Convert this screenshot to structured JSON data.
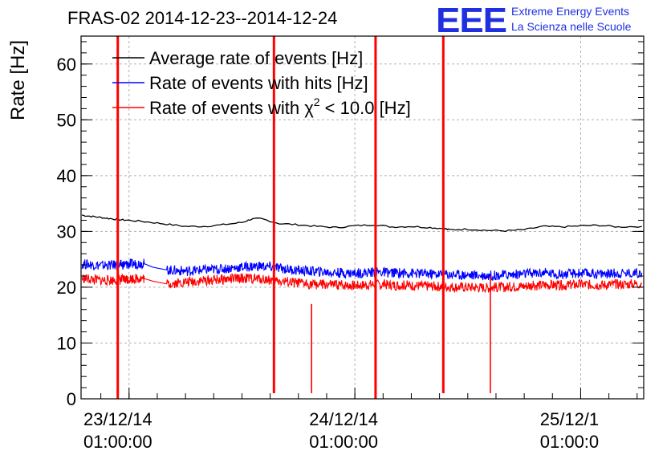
{
  "chart_data": {
    "type": "line",
    "title": "FRAS-02 2014-12-23--2014-12-24",
    "xlabel": "",
    "ylabel": "Rate [Hz]",
    "ylim": [
      0,
      65
    ],
    "xlim_hours": [
      -5.1,
      54.7
    ],
    "grid": true,
    "legend": "top-left",
    "yticks": [
      "0",
      "10",
      "20",
      "30",
      "40",
      "50",
      "60"
    ],
    "xticks": [
      {
        "hour": 0,
        "date": "23/12/14",
        "time": "01:00:00"
      },
      {
        "hour": 24,
        "date": "24/12/14",
        "time": "01:00:00"
      },
      {
        "hour": 48,
        "date": "25/12/1",
        "time": "01:00:0"
      }
    ],
    "series": [
      {
        "name": "Average rate of events [Hz]",
        "legend_prefix": "Average rate of events [Hz]",
        "legend_sup": "",
        "legend_suffix": "",
        "color": "#000000",
        "x": [
          -5.0,
          -4.0,
          -3.0,
          -2.0,
          -1.0,
          0.0,
          2.0,
          4.0,
          6.0,
          8.0,
          10.0,
          12.0,
          13.0,
          14.0,
          16.0,
          18.0,
          20.0,
          22.0,
          24.0,
          26.0,
          28.0,
          30.0,
          32.0,
          33.5,
          34.0,
          36.0,
          38.0,
          40.0,
          42.0,
          44.0,
          46.0,
          48.0,
          50.0,
          52.0,
          54.5
        ],
        "y": [
          32.9,
          32.7,
          32.5,
          32.3,
          32.1,
          32.0,
          31.7,
          31.3,
          30.9,
          30.9,
          31.2,
          31.6,
          32.2,
          32.3,
          31.4,
          31.2,
          30.9,
          30.7,
          31.0,
          31.2,
          30.8,
          30.9,
          30.7,
          30.5,
          30.3,
          30.4,
          30.2,
          30.1,
          30.3,
          30.9,
          30.8,
          31.0,
          31.1,
          30.8,
          30.9
        ]
      },
      {
        "name": "Rate of events with hits [Hz]",
        "legend_prefix": "Rate of events with hits [Hz]",
        "legend_sup": "",
        "legend_suffix": "",
        "color": "#0000ff",
        "x": [
          -5.0,
          -3.0,
          -1.0,
          0.0,
          1.5,
          2.5,
          4.0,
          6.0,
          8.0,
          10.0,
          12.0,
          14.0,
          16.0,
          18.0,
          20.0,
          22.0,
          24.0,
          26.0,
          28.0,
          30.0,
          32.0,
          34.0,
          36.0,
          38.0,
          40.0,
          42.0,
          44.0,
          46.0,
          48.0,
          50.0,
          52.0,
          54.5
        ],
        "y": [
          24.2,
          23.9,
          24.0,
          24.1,
          24.3,
          23.6,
          23.1,
          22.9,
          23.1,
          23.3,
          23.6,
          23.8,
          23.4,
          23.0,
          22.8,
          22.6,
          22.5,
          22.7,
          22.6,
          22.5,
          22.4,
          22.3,
          22.2,
          22.1,
          22.2,
          22.4,
          22.6,
          22.3,
          22.5,
          22.4,
          22.5,
          22.6
        ]
      },
      {
        "name": "Rate of events with χ2 < 10.0 [Hz]",
        "legend_prefix": "Rate of events with χ",
        "legend_sup": "2",
        "legend_suffix": " < 10.0 [Hz]",
        "color": "#ff0000",
        "x": [
          -5.0,
          -3.0,
          -1.0,
          0.0,
          1.5,
          2.5,
          4.0,
          6.0,
          8.0,
          10.0,
          12.0,
          14.0,
          16.0,
          18.0,
          20.0,
          22.0,
          24.0,
          26.0,
          28.0,
          30.0,
          32.0,
          34.0,
          36.0,
          38.0,
          40.0,
          42.0,
          44.0,
          46.0,
          48.0,
          50.0,
          52.0,
          54.5
        ],
        "y": [
          21.6,
          21.2,
          21.3,
          21.5,
          21.6,
          21.1,
          20.6,
          20.9,
          21.2,
          21.4,
          21.6,
          21.5,
          21.1,
          20.7,
          20.5,
          20.4,
          20.3,
          20.5,
          20.4,
          20.3,
          20.2,
          20.1,
          20.0,
          19.9,
          20.0,
          20.2,
          20.4,
          20.3,
          20.5,
          20.4,
          20.5,
          20.6
        ]
      }
    ],
    "spikes": [
      {
        "hour": -1.2,
        "top": 65,
        "bottom": 0
      },
      {
        "hour": 15.4,
        "top": 65,
        "bottom": 1
      },
      {
        "hour": 19.4,
        "top": 17,
        "bottom": 1
      },
      {
        "hour": 26.2,
        "top": 65,
        "bottom": 0
      },
      {
        "hour": 33.4,
        "top": 65,
        "bottom": 1
      },
      {
        "hour": 38.4,
        "top": 22,
        "bottom": 1
      }
    ]
  },
  "logo": {
    "mark": "EEE",
    "line1": "Extreme Energy Events",
    "line2": "La Scienza nelle Scuole"
  }
}
